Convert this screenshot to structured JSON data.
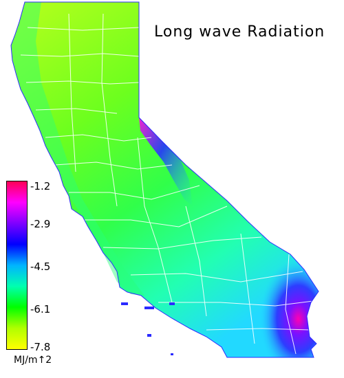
{
  "title": "Long wave Radiation",
  "legend": {
    "ticks": [
      "-1.2",
      "-2.9",
      "-4.5",
      "-6.1",
      "-7.8"
    ],
    "units": "MJ/m↑2",
    "colors": [
      "#ff0055",
      "#ff00ff",
      "#7f00ff",
      "#0000ff",
      "#00b4ff",
      "#00ffb0",
      "#00ff00",
      "#b0ff00",
      "#ffff00"
    ]
  },
  "map": {
    "region": "California",
    "fill_colors": {
      "base": "#44ff22",
      "north": "#a8ff20",
      "coast": "#22ff88",
      "south": "#22ddff",
      "east_low": "#3333ff",
      "east_peak": "#ff00cc",
      "outline": "#ffffff"
    }
  }
}
